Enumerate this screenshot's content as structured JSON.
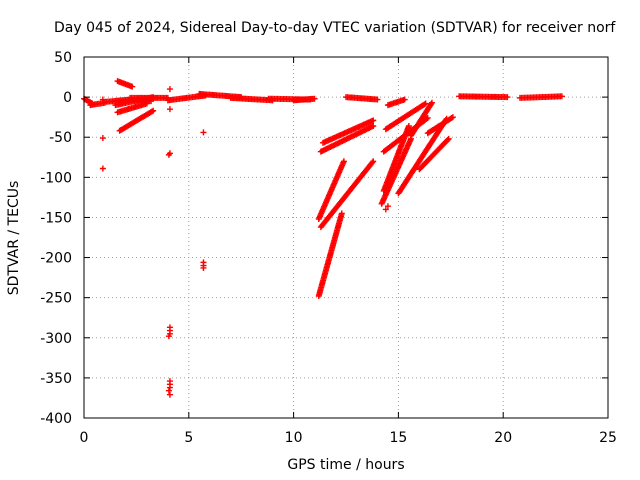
{
  "chart_data": {
    "type": "scatter",
    "title": "Day 045 of 2024, Sidereal Day-to-day VTEC variation (SDTVAR) for receiver norf",
    "xlabel": "GPS time / hours",
    "ylabel": "SDTVAR / TECUs",
    "xlim": [
      0,
      25
    ],
    "ylim": [
      -400,
      50
    ],
    "xticks": [
      0,
      5,
      10,
      15,
      20,
      25
    ],
    "yticks": [
      50,
      0,
      -50,
      -100,
      -150,
      -200,
      -250,
      -300,
      -350,
      -400
    ],
    "grid": true,
    "marker": "+",
    "color": "#ff0000",
    "segments": [
      {
        "x0": 0.0,
        "y0": -2,
        "x1": 0.4,
        "y1": -8
      },
      {
        "x0": 0.3,
        "y0": -10,
        "x1": 1.0,
        "y1": -7
      },
      {
        "x0": 1.0,
        "y0": -6,
        "x1": 2.2,
        "y1": -3
      },
      {
        "x0": 1.5,
        "y0": -10,
        "x1": 3.3,
        "y1": 0
      },
      {
        "x0": 1.6,
        "y0": 20,
        "x1": 2.3,
        "y1": 13
      },
      {
        "x0": 1.6,
        "y0": -19,
        "x1": 3.0,
        "y1": -8
      },
      {
        "x0": 1.7,
        "y0": -42,
        "x1": 3.3,
        "y1": -17
      },
      {
        "x0": 2.2,
        "y0": -1,
        "x1": 4.0,
        "y1": -1
      },
      {
        "x0": 2.5,
        "y0": -3,
        "x1": 3.2,
        "y1": -5
      },
      {
        "x0": 4.0,
        "y0": -4,
        "x1": 5.8,
        "y1": 2
      },
      {
        "x0": 5.5,
        "y0": 4,
        "x1": 7.5,
        "y1": 0
      },
      {
        "x0": 7.0,
        "y0": -1,
        "x1": 9.0,
        "y1": -4
      },
      {
        "x0": 8.8,
        "y0": -2,
        "x1": 10.8,
        "y1": -3
      },
      {
        "x0": 10.0,
        "y0": -4,
        "x1": 11.0,
        "y1": -2
      },
      {
        "x0": 11.2,
        "y0": -248,
        "x1": 12.3,
        "y1": -145
      },
      {
        "x0": 11.2,
        "y0": -152,
        "x1": 12.4,
        "y1": -80
      },
      {
        "x0": 11.3,
        "y0": -162,
        "x1": 13.8,
        "y1": -80
      },
      {
        "x0": 11.3,
        "y0": -68,
        "x1": 13.8,
        "y1": -36
      },
      {
        "x0": 11.4,
        "y0": -57,
        "x1": 13.8,
        "y1": -29
      },
      {
        "x0": 12.5,
        "y0": 0,
        "x1": 14.0,
        "y1": -3
      },
      {
        "x0": 14.2,
        "y0": -133,
        "x1": 15.6,
        "y1": -52
      },
      {
        "x0": 14.3,
        "y0": -117,
        "x1": 15.5,
        "y1": -36
      },
      {
        "x0": 14.3,
        "y0": -68,
        "x1": 16.4,
        "y1": -26
      },
      {
        "x0": 14.4,
        "y0": -40,
        "x1": 16.3,
        "y1": -8
      },
      {
        "x0": 14.5,
        "y0": -10,
        "x1": 15.3,
        "y1": -3
      },
      {
        "x0": 15.0,
        "y0": -120,
        "x1": 17.3,
        "y1": -27
      },
      {
        "x0": 15.6,
        "y0": -48,
        "x1": 16.6,
        "y1": -7
      },
      {
        "x0": 16.0,
        "y0": -90,
        "x1": 17.4,
        "y1": -52
      },
      {
        "x0": 16.4,
        "y0": -45,
        "x1": 17.6,
        "y1": -25
      },
      {
        "x0": 17.9,
        "y0": 1,
        "x1": 20.2,
        "y1": 0
      },
      {
        "x0": 20.8,
        "y0": -1,
        "x1": 22.8,
        "y1": 1
      }
    ],
    "points": [
      {
        "x": 0.9,
        "y": -51
      },
      {
        "x": 0.9,
        "y": -89
      },
      {
        "x": 0.9,
        "y": -3
      },
      {
        "x": 4.1,
        "y": 10
      },
      {
        "x": 4.1,
        "y": -15
      },
      {
        "x": 4.1,
        "y": -70
      },
      {
        "x": 4.05,
        "y": -72
      },
      {
        "x": 4.1,
        "y": -287
      },
      {
        "x": 4.1,
        "y": -291
      },
      {
        "x": 4.1,
        "y": -295
      },
      {
        "x": 4.05,
        "y": -298
      },
      {
        "x": 4.1,
        "y": -354
      },
      {
        "x": 4.1,
        "y": -358
      },
      {
        "x": 4.1,
        "y": -362
      },
      {
        "x": 4.05,
        "y": -366
      },
      {
        "x": 4.1,
        "y": -371
      },
      {
        "x": 5.7,
        "y": -44
      },
      {
        "x": 5.7,
        "y": -206
      },
      {
        "x": 5.7,
        "y": -210
      },
      {
        "x": 5.7,
        "y": -213
      },
      {
        "x": 14.5,
        "y": -136
      },
      {
        "x": 14.4,
        "y": -140
      }
    ]
  }
}
